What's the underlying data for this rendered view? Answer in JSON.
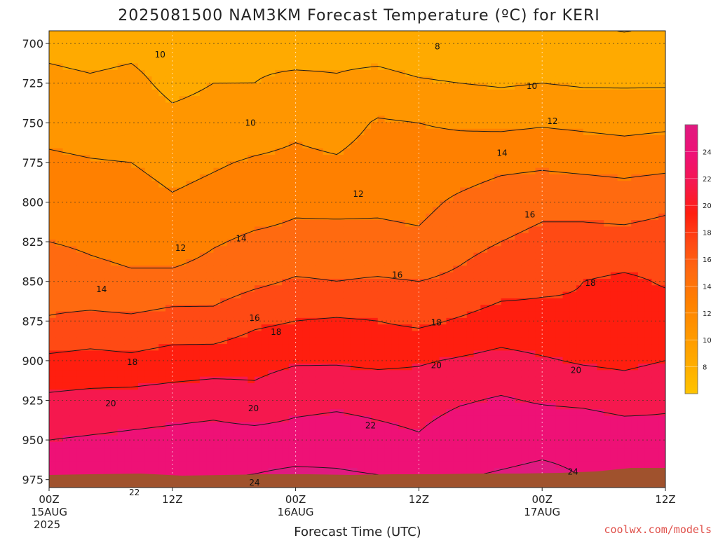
{
  "chart_data": {
    "type": "heatmap",
    "title": "2025081500 NAM3KM Forecast Temperature (ºC) for KERI",
    "xlabel": "Forecast Time (UTC)",
    "ylabel": "",
    "y_axis": {
      "unit": "hPa",
      "inverted": true,
      "range": [
        692,
        980
      ],
      "ticks": [
        700,
        725,
        750,
        775,
        800,
        825,
        850,
        875,
        900,
        925,
        950,
        975
      ]
    },
    "x_axis": {
      "range_hours": [
        0,
        60
      ],
      "ticks": [
        {
          "hour": 0,
          "line1": "00Z",
          "line2": "15AUG",
          "line3": "2025"
        },
        {
          "hour": 12,
          "line1": "12Z",
          "line2": "",
          "line3": ""
        },
        {
          "hour": 24,
          "line1": "00Z",
          "line2": "16AUG",
          "line3": ""
        },
        {
          "hour": 36,
          "line1": "12Z",
          "line2": "",
          "line3": ""
        },
        {
          "hour": 48,
          "line1": "00Z",
          "line2": "17AUG",
          "line3": ""
        },
        {
          "hour": 60,
          "line1": "12Z",
          "line2": "",
          "line3": ""
        }
      ]
    },
    "grid": true,
    "contour_interval": 2,
    "colorbar": {
      "levels": [
        8,
        10,
        12,
        14,
        16,
        18,
        20,
        22,
        24
      ],
      "colors": [
        "#ffc400",
        "#ffaa00",
        "#ff9600",
        "#ff8000",
        "#ff6a10",
        "#ff4a14",
        "#ff1e0f",
        "#f5184e",
        "#ee1176",
        "#e01a80"
      ]
    },
    "temperature_profiles": [
      {
        "hour": 0,
        "levels": {
          "700": 9.6,
          "725": 10.4,
          "750": 11.4,
          "775": 12.3,
          "800": 13.2,
          "825": 14.0,
          "850": 14.8,
          "875": 16.2,
          "900": 18.4,
          "925": 20.4,
          "950": 22.0,
          "975": 23.0
        }
      },
      {
        "hour": 4,
        "levels": {
          "700": 9.4,
          "725": 10.2,
          "750": 11.2,
          "775": 12.1,
          "800": 13.0,
          "825": 13.8,
          "850": 14.4,
          "875": 16.6,
          "900": 18.6,
          "925": 20.6,
          "950": 22.2,
          "975": 23.4
        }
      },
      {
        "hour": 8,
        "levels": {
          "700": 9.6,
          "725": 10.4,
          "750": 11.0,
          "775": 12.0,
          "800": 12.8,
          "825": 13.6,
          "850": 14.2,
          "875": 16.4,
          "900": 18.4,
          "925": 20.8,
          "950": 22.4,
          "975": 23.6
        }
      },
      {
        "hour": 12,
        "levels": {
          "700": 9.2,
          "725": 9.6,
          "750": 10.4,
          "775": 11.4,
          "800": 12.2,
          "825": 12.8,
          "850": 14.6,
          "875": 16.8,
          "900": 18.8,
          "925": 21.0,
          "950": 22.6,
          "975": 23.6
        }
      },
      {
        "hour": 16,
        "levels": {
          "700": 9.4,
          "725": 10.0,
          "750": 10.6,
          "775": 11.8,
          "800": 12.6,
          "825": 13.8,
          "850": 15.0,
          "875": 16.6,
          "900": 19.0,
          "925": 21.2,
          "950": 22.8,
          "975": 24.0
        }
      },
      {
        "hour": 20,
        "levels": {
          "700": 9.6,
          "725": 10.0,
          "750": 11.0,
          "775": 12.2,
          "800": 13.0,
          "825": 14.4,
          "850": 15.6,
          "875": 17.6,
          "900": 19.4,
          "925": 20.6,
          "950": 22.8,
          "975": 24.2
        }
      },
      {
        "hour": 24,
        "levels": {
          "700": 9.2,
          "725": 10.4,
          "750": 11.6,
          "775": 12.4,
          "800": 13.6,
          "825": 14.6,
          "850": 16.2,
          "875": 18.0,
          "900": 19.8,
          "925": 21.4,
          "950": 22.8,
          "975": 24.6
        }
      },
      {
        "hour": 28,
        "levels": {
          "700": 9.4,
          "725": 10.2,
          "750": 11.2,
          "775": 12.2,
          "800": 13.4,
          "825": 14.8,
          "850": 16.0,
          "875": 18.2,
          "900": 19.8,
          "925": 21.6,
          "950": 23.0,
          "975": 24.4
        }
      },
      {
        "hour": 32,
        "levels": {
          "700": 9.2,
          "725": 10.6,
          "750": 12.2,
          "775": 12.8,
          "800": 13.6,
          "825": 14.6,
          "850": 16.2,
          "875": 18.0,
          "900": 19.6,
          "925": 21.4,
          "950": 22.6,
          "975": 24.2
        }
      },
      {
        "hour": 36,
        "levels": {
          "700": 8.8,
          "725": 10.2,
          "750": 12.0,
          "775": 12.6,
          "800": 13.4,
          "825": 14.4,
          "850": 16.0,
          "875": 17.6,
          "900": 19.8,
          "925": 21.2,
          "950": 22.2,
          "975": 23.8
        }
      },
      {
        "hour": 40,
        "levels": {
          "700": 8.6,
          "725": 10.0,
          "750": 11.8,
          "775": 12.8,
          "800": 14.4,
          "825": 15.4,
          "850": 16.4,
          "875": 18.2,
          "900": 20.2,
          "925": 21.8,
          "950": 23.2,
          "975": 24.0
        }
      },
      {
        "hour": 44,
        "levels": {
          "700": 8.8,
          "725": 9.8,
          "750": 11.6,
          "775": 13.4,
          "800": 15.2,
          "825": 16.0,
          "850": 17.2,
          "875": 18.8,
          "900": 20.6,
          "925": 22.2,
          "950": 23.4,
          "975": 24.2
        }
      },
      {
        "hour": 48,
        "levels": {
          "700": 8.8,
          "725": 10.0,
          "750": 11.8,
          "775": 13.6,
          "800": 15.6,
          "825": 16.4,
          "850": 17.6,
          "875": 18.6,
          "900": 20.2,
          "925": 21.8,
          "950": 23.6,
          "975": 24.4
        }
      },
      {
        "hour": 52,
        "levels": {
          "700": 8.6,
          "725": 9.8,
          "750": 11.6,
          "775": 13.4,
          "800": 15.4,
          "825": 16.6,
          "850": 18.0,
          "875": 18.2,
          "900": 19.8,
          "925": 21.6,
          "950": 23.6,
          "975": 24.0
        }
      },
      {
        "hour": 56,
        "levels": {
          "700": 8.4,
          "725": 9.8,
          "750": 11.4,
          "775": 13.2,
          "800": 15.2,
          "825": 16.6,
          "850": 18.4,
          "875": 18.8,
          "900": 19.6,
          "925": 21.2,
          "950": 23.2,
          "975": 23.6
        }
      },
      {
        "hour": 60,
        "levels": {
          "700": 8.6,
          "725": 9.8,
          "750": 11.6,
          "775": 13.4,
          "800": 15.6,
          "825": 16.8,
          "850": 17.8,
          "875": 19.0,
          "900": 20.0,
          "925": 21.6,
          "950": 22.8,
          "975": 23.4
        }
      }
    ],
    "contour_labels": [
      {
        "text": "10",
        "hour": 10.8,
        "p": 707
      },
      {
        "text": "10",
        "hour": 19.6,
        "p": 750
      },
      {
        "text": "10",
        "hour": 47.0,
        "p": 727
      },
      {
        "text": "8",
        "hour": 37.8,
        "p": 702
      },
      {
        "text": "12",
        "hour": 12.8,
        "p": 829
      },
      {
        "text": "12",
        "hour": 30.1,
        "p": 795
      },
      {
        "text": "12",
        "hour": 49.0,
        "p": 749
      },
      {
        "text": "14",
        "hour": 5.1,
        "p": 855
      },
      {
        "text": "14",
        "hour": 18.7,
        "p": 823
      },
      {
        "text": "14",
        "hour": 44.1,
        "p": 769
      },
      {
        "text": "16",
        "hour": 20.0,
        "p": 873
      },
      {
        "text": "16",
        "hour": 33.9,
        "p": 846
      },
      {
        "text": "16",
        "hour": 46.8,
        "p": 808
      },
      {
        "text": "18",
        "hour": 8.1,
        "p": 901
      },
      {
        "text": "18",
        "hour": 22.1,
        "p": 882
      },
      {
        "text": "18",
        "hour": 37.7,
        "p": 876
      },
      {
        "text": "18",
        "hour": 52.7,
        "p": 851
      },
      {
        "text": "20",
        "hour": 6.0,
        "p": 927
      },
      {
        "text": "20",
        "hour": 19.9,
        "p": 930
      },
      {
        "text": "20",
        "hour": 37.7,
        "p": 903
      },
      {
        "text": "20",
        "hour": 51.3,
        "p": 906
      },
      {
        "text": "22",
        "hour": 8.3,
        "p": 983
      },
      {
        "text": "22",
        "hour": 31.3,
        "p": 941
      },
      {
        "text": "24",
        "hour": 20.0,
        "p": 977
      },
      {
        "text": "24",
        "hour": 51.0,
        "p": 970
      }
    ]
  },
  "credit": "coolwx.com/models"
}
